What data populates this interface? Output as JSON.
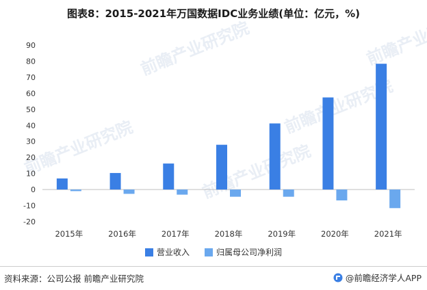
{
  "title": "图表8：2015-2021年万国数据IDC业务业绩(单位：亿元，%)",
  "footer": {
    "source": "资料来源：公司公报 前瞻产业研究院",
    "brand": "@前瞻经济学人APP"
  },
  "watermark": "前瞻产业研究院",
  "colors": {
    "revenue": "#3a7fe4",
    "net_profit": "#6aa8ee"
  },
  "chart_data": {
    "type": "bar",
    "categories": [
      "2015年",
      "2016年",
      "2017年",
      "2018年",
      "2019年",
      "2020年",
      "2021年"
    ],
    "series": [
      {
        "name": "营业收入",
        "values": [
          6.9,
          10.3,
          16.2,
          27.9,
          41.2,
          57.4,
          78.4
        ]
      },
      {
        "name": "归属母公司净利润",
        "values": [
          -1.0,
          -2.7,
          -3.2,
          -4.5,
          -4.5,
          -6.8,
          -11.6
        ]
      }
    ],
    "ylim": [
      -20,
      90
    ],
    "yticks": [
      -20,
      -10,
      0,
      10,
      20,
      30,
      40,
      50,
      60,
      70,
      80,
      90
    ],
    "grid": false,
    "legend_position": "bottom",
    "xlabel": "",
    "ylabel": ""
  }
}
